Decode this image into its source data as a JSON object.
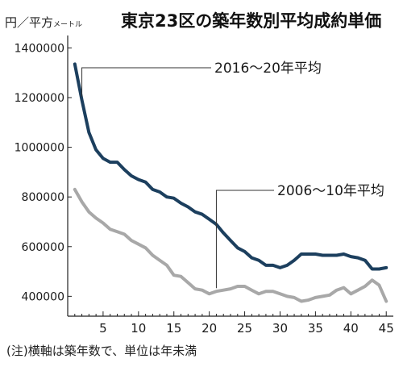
{
  "title": "東京23区の築年数別平均成約単価",
  "unit_main": "円／平方",
  "unit_small": "メートル",
  "footnote": "(注)横軸は築年数で、単位は年未満",
  "chart_data": {
    "type": "line",
    "title": "東京23区の築年数別平均成約単価",
    "xlabel": "",
    "ylabel": "円／平方メートル",
    "xlim": [
      0,
      46
    ],
    "ylim": [
      320000,
      1450000
    ],
    "xticks": [
      5,
      10,
      15,
      20,
      25,
      30,
      35,
      40,
      45
    ],
    "yticks": [
      400000,
      600000,
      800000,
      1000000,
      1200000,
      1400000
    ],
    "grid": false,
    "x": [
      1,
      2,
      3,
      4,
      5,
      6,
      7,
      8,
      9,
      10,
      11,
      12,
      13,
      14,
      15,
      16,
      17,
      18,
      19,
      20,
      21,
      22,
      23,
      24,
      25,
      26,
      27,
      28,
      29,
      30,
      31,
      32,
      33,
      34,
      35,
      36,
      37,
      38,
      39,
      40,
      41,
      42,
      43,
      44,
      45
    ],
    "series": [
      {
        "name": "2016〜20年平均",
        "color": "#1c3f5e",
        "values": [
          1335000,
          1190000,
          1060000,
          990000,
          955000,
          940000,
          940000,
          910000,
          885000,
          870000,
          860000,
          830000,
          820000,
          800000,
          795000,
          775000,
          760000,
          740000,
          730000,
          710000,
          690000,
          655000,
          625000,
          595000,
          580000,
          555000,
          545000,
          525000,
          525000,
          515000,
          525000,
          545000,
          570000,
          570000,
          570000,
          565000,
          565000,
          565000,
          570000,
          560000,
          555000,
          545000,
          510000,
          510000,
          515000
        ]
      },
      {
        "name": "2006〜10年平均",
        "color": "#a8a8a8",
        "values": [
          830000,
          780000,
          740000,
          715000,
          695000,
          670000,
          660000,
          650000,
          625000,
          610000,
          595000,
          565000,
          545000,
          525000,
          485000,
          480000,
          455000,
          430000,
          425000,
          410000,
          420000,
          425000,
          430000,
          440000,
          440000,
          425000,
          410000,
          420000,
          420000,
          410000,
          400000,
          395000,
          380000,
          385000,
          395000,
          400000,
          405000,
          425000,
          435000,
          410000,
          425000,
          440000,
          465000,
          445000,
          380000
        ]
      }
    ],
    "annotations": [
      {
        "text": "2016〜20年平均",
        "series": 0,
        "x": 2
      },
      {
        "text": "2006〜10年平均",
        "series": 1,
        "x": 21
      }
    ]
  }
}
